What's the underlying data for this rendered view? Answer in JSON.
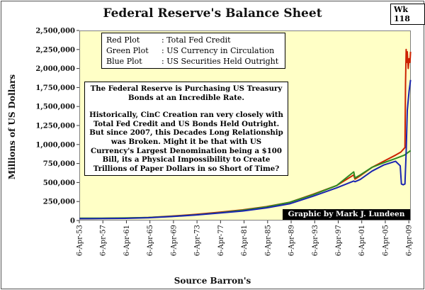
{
  "header": {
    "title": "Federal Reserve's Balance Sheet",
    "badge": "Wk 118"
  },
  "legend_box": {
    "items": [
      {
        "key": "Red Plot",
        "value": ": Total Fed Credit"
      },
      {
        "key": "Green Plot",
        "value": ": US Currency in Circulation"
      },
      {
        "key": "Blue Plot",
        "value": ": US Securities Held Outright"
      }
    ]
  },
  "annotation": {
    "para1": "The Federal Reserve is Purchasing US Treasury Bonds at an Incredible Rate.",
    "para2": "Historically, CinC Creation ran very closely with Total Fed Credit and US Bonds Held Outright.  But since 2007, this Decades Long Relationship was Broken.  Might it be that with US Currency's Largest Denomination being a $100 Bill, its a Physical Impossibility to Create Trillions of Paper Dollars in so Short of Time?"
  },
  "credit": "Graphic by Mark J. Lundeen",
  "chart_data": {
    "type": "line",
    "title": "Federal Reserve's Balance Sheet",
    "xlabel": "Source Barron's",
    "ylabel": "Millions of US Dollars",
    "ylim": [
      0,
      2500000
    ],
    "yticks": [
      0,
      250000,
      500000,
      750000,
      1000000,
      1250000,
      1500000,
      1750000,
      2000000,
      2250000,
      2500000
    ],
    "ytick_labels": [
      "0",
      "250,000",
      "500,000",
      "750,000",
      "1,000,000",
      "1,250,000",
      "1,500,000",
      "1,750,000",
      "2,000,000",
      "2,250,000",
      "2,500,000"
    ],
    "xlim": [
      1953.26,
      2009.6
    ],
    "xticks": [
      1953.26,
      1957.26,
      1961.26,
      1965.26,
      1969.26,
      1973.26,
      1977.26,
      1981.26,
      1985.26,
      1989.26,
      1993.26,
      1997.26,
      2001.26,
      2005.26,
      2009.26
    ],
    "xtick_labels": [
      "6-Apr-53",
      "6-Apr-57",
      "6-Apr-61",
      "6-Apr-65",
      "6-Apr-69",
      "6-Apr-73",
      "6-Apr-77",
      "6-Apr-81",
      "6-Apr-85",
      "6-Apr-89",
      "6-Apr-93",
      "6-Apr-97",
      "6-Apr-01",
      "6-Apr-05",
      "6-Apr-09"
    ],
    "grid": false,
    "series": [
      {
        "name": "Total Fed Credit",
        "color": "#cc2200",
        "x": [
          1953.3,
          1957,
          1961,
          1965,
          1969,
          1973,
          1977,
          1981,
          1985,
          1989,
          1993,
          1997,
          1999.9,
          2000.1,
          2001,
          2003,
          2005,
          2007,
          2007.9,
          2008.6,
          2008.7,
          2008.8,
          2008.9,
          2009.0,
          2009.15,
          2009.3,
          2009.45,
          2009.55
        ],
        "y": [
          25000,
          28000,
          32000,
          40000,
          58000,
          80000,
          108000,
          140000,
          182000,
          240000,
          345000,
          460000,
          600000,
          545000,
          590000,
          700000,
          780000,
          860000,
          900000,
          960000,
          1800000,
          2250000,
          2080000,
          2220000,
          2000000,
          2130000,
          2080000,
          2220000
        ]
      },
      {
        "name": "US Currency in Circulation",
        "color": "#2e8b22",
        "x": [
          1953.3,
          1957,
          1961,
          1965,
          1969,
          1973,
          1977,
          1981,
          1985,
          1989,
          1993,
          1997,
          1999.9,
          2000.1,
          2001,
          2003,
          2005,
          2007,
          2008.5,
          2009.55
        ],
        "y": [
          30000,
          31000,
          34000,
          40000,
          55000,
          75000,
          102000,
          135000,
          178000,
          240000,
          340000,
          460000,
          640000,
          560000,
          600000,
          700000,
          760000,
          815000,
          860000,
          920000
        ]
      },
      {
        "name": "US Securities Held Outright",
        "color": "#1a24b0",
        "x": [
          1953.3,
          1957,
          1961,
          1965,
          1969,
          1973,
          1977,
          1981,
          1985,
          1989,
          1993,
          1997,
          1999.9,
          2000.1,
          2001,
          2003,
          2005,
          2007,
          2007.8,
          2008.0,
          2008.3,
          2008.6,
          2008.8,
          2009.0,
          2009.3,
          2009.55
        ],
        "y": [
          24000,
          25000,
          28000,
          36000,
          52000,
          72000,
          98000,
          125000,
          165000,
          220000,
          320000,
          430000,
          520000,
          510000,
          540000,
          650000,
          730000,
          780000,
          720000,
          480000,
          470000,
          480000,
          900000,
          1450000,
          1700000,
          1850000
        ]
      }
    ]
  }
}
